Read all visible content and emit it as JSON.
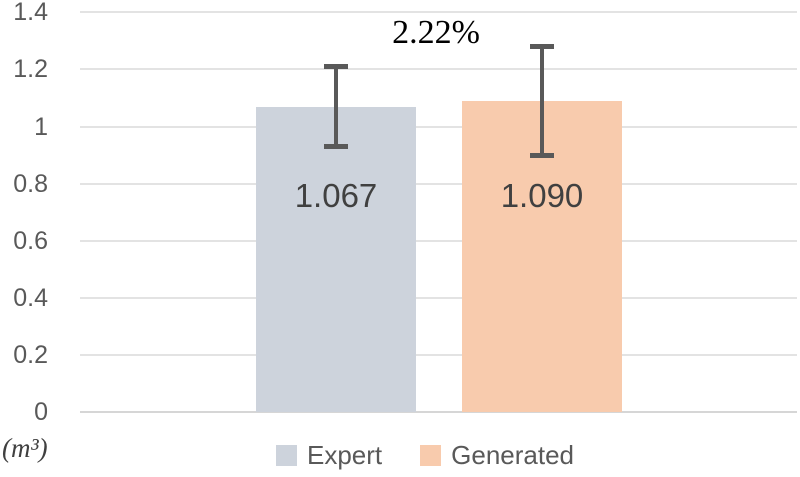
{
  "chart_data": {
    "type": "bar",
    "title": "",
    "categories": [
      ""
    ],
    "series": [
      {
        "name": "Expert",
        "value": 1.067,
        "value_label": "1.067",
        "color": "#CDD3DC",
        "error": {
          "upper": 1.22,
          "lower": 0.92
        }
      },
      {
        "name": "Generated",
        "value": 1.09,
        "value_label": "1.090",
        "color": "#F8CBAD",
        "error": {
          "upper": 1.29,
          "lower": 0.89
        }
      }
    ],
    "annotation": "2.22%",
    "y_axis_unit": "(m³)",
    "y_ticks": [
      "0",
      "0.2",
      "0.4",
      "0.6",
      "0.8",
      "1",
      "1.2",
      "1.4"
    ],
    "ylim": [
      0,
      1.4
    ],
    "grid": true,
    "legend_position": "bottom",
    "colors": {
      "expert_bar": "#CDD3DC",
      "generated_bar": "#F8CBAD",
      "error_bar": "#595959",
      "gridline": "#E3E3E3",
      "axis_line": "#D6D6D6",
      "tick_label": "#595959",
      "value_label": "#404040",
      "annotation": "#000000",
      "legend_text": "#595959"
    }
  }
}
